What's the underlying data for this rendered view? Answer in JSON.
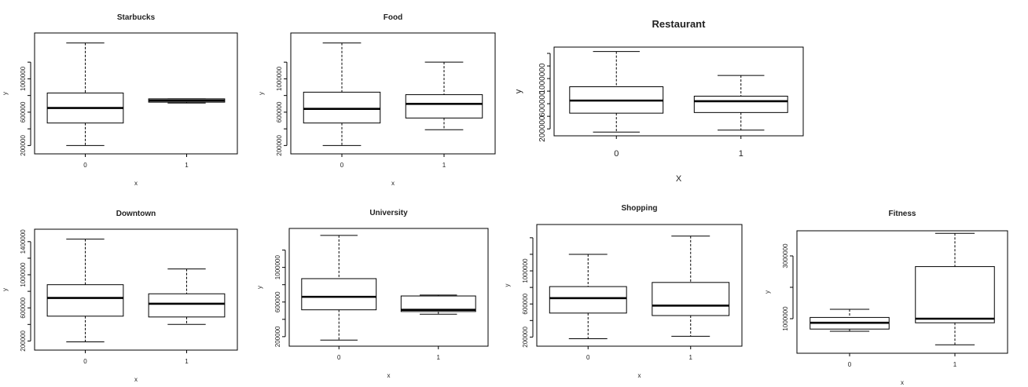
{
  "chart_data": [
    {
      "type": "boxplot",
      "title": "Starbucks",
      "xlabel": "x",
      "ylabel": "y",
      "categories": [
        "0",
        "1"
      ],
      "ylim": [
        100000,
        1550000
      ],
      "yticks": [
        200000,
        600000,
        1000000
      ],
      "yticks_all": [
        200000,
        400000,
        600000,
        800000,
        1000000,
        1200000
      ],
      "boxes": [
        {
          "min": 200000,
          "q1": 470000,
          "median": 650000,
          "q3": 830000,
          "max": 1430000
        },
        {
          "min": 710000,
          "q1": 720000,
          "median": 740000,
          "q3": 760000,
          "max": 760000
        }
      ]
    },
    {
      "type": "boxplot",
      "title": "Food",
      "xlabel": "x",
      "ylabel": "y",
      "categories": [
        "0",
        "1"
      ],
      "ylim": [
        100000,
        1550000
      ],
      "yticks": [
        200000,
        600000,
        1000000
      ],
      "yticks_all": [
        200000,
        400000,
        600000,
        800000,
        1000000,
        1200000
      ],
      "boxes": [
        {
          "min": 200000,
          "q1": 470000,
          "median": 640000,
          "q3": 840000,
          "max": 1430000
        },
        {
          "min": 390000,
          "q1": 530000,
          "median": 700000,
          "q3": 810000,
          "max": 1200000
        }
      ]
    },
    {
      "type": "boxplot",
      "title": "Restaurant",
      "xlabel": "X",
      "ylabel": "y",
      "categories": [
        "0",
        "1"
      ],
      "ylim": [
        90000,
        1500000
      ],
      "yticks": [
        200000,
        600000,
        1000000
      ],
      "yticks_all": [
        200000,
        400000,
        600000,
        800000,
        1000000,
        1200000,
        1400000
      ],
      "boxes": [
        {
          "min": 150000,
          "q1": 450000,
          "median": 650000,
          "q3": 870000,
          "max": 1430000
        },
        {
          "min": 180000,
          "q1": 460000,
          "median": 640000,
          "q3": 720000,
          "max": 1050000
        }
      ]
    },
    {
      "type": "boxplot",
      "title": "Downtown",
      "xlabel": "x",
      "ylabel": "y",
      "categories": [
        "0",
        "1"
      ],
      "ylim": [
        90000,
        1550000
      ],
      "yticks": [
        200000,
        600000,
        1000000,
        1400000
      ],
      "yticks_all": [
        200000,
        400000,
        600000,
        800000,
        1000000,
        1200000,
        1400000
      ],
      "boxes": [
        {
          "min": 190000,
          "q1": 500000,
          "median": 720000,
          "q3": 880000,
          "max": 1430000
        },
        {
          "min": 400000,
          "q1": 490000,
          "median": 650000,
          "q3": 770000,
          "max": 1070000
        }
      ]
    },
    {
      "type": "boxplot",
      "title": "University",
      "xlabel": "x",
      "ylabel": "y",
      "categories": [
        "0",
        "1"
      ],
      "ylim": [
        90000,
        1450000
      ],
      "yticks": [
        200000,
        600000,
        1000000
      ],
      "yticks_all": [
        200000,
        400000,
        600000,
        800000,
        1000000,
        1200000
      ],
      "boxes": [
        {
          "min": 160000,
          "q1": 510000,
          "median": 660000,
          "q3": 870000,
          "max": 1370000
        },
        {
          "min": 460000,
          "q1": 490000,
          "median": 510000,
          "q3": 670000,
          "max": 680000
        }
      ]
    },
    {
      "type": "boxplot",
      "title": "Shopping",
      "xlabel": "x",
      "ylabel": "y",
      "categories": [
        "0",
        "1"
      ],
      "ylim": [
        90000,
        1560000
      ],
      "yticks": [
        200000,
        600000,
        1000000
      ],
      "yticks_all": [
        200000,
        400000,
        600000,
        800000,
        1000000,
        1200000,
        1400000
      ],
      "boxes": [
        {
          "min": 180000,
          "q1": 490000,
          "median": 670000,
          "q3": 810000,
          "max": 1200000
        },
        {
          "min": 210000,
          "q1": 460000,
          "median": 580000,
          "q3": 860000,
          "max": 1420000
        }
      ]
    },
    {
      "type": "boxplot",
      "title": "Fitness",
      "xlabel": "x",
      "ylabel": "y",
      "categories": [
        "0",
        "1"
      ],
      "ylim": [
        -100000,
        3800000
      ],
      "yticks": [
        1000000,
        3000000
      ],
      "yticks_all": [
        1000000,
        2000000,
        3000000
      ],
      "boxes": [
        {
          "min": 600000,
          "q1": 670000,
          "median": 870000,
          "q3": 1040000,
          "max": 1300000
        },
        {
          "min": 170000,
          "q1": 870000,
          "median": 1000000,
          "q3": 2660000,
          "max": 3720000
        }
      ]
    }
  ]
}
